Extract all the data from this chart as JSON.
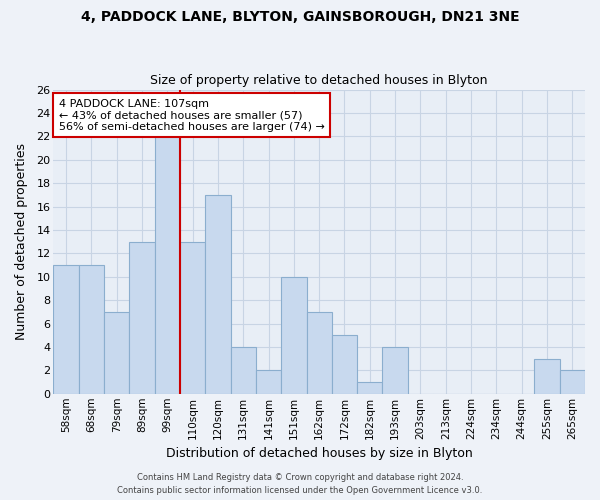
{
  "title1": "4, PADDOCK LANE, BLYTON, GAINSBOROUGH, DN21 3NE",
  "title2": "Size of property relative to detached houses in Blyton",
  "xlabel": "Distribution of detached houses by size in Blyton",
  "ylabel": "Number of detached properties",
  "bar_labels": [
    "58sqm",
    "68sqm",
    "79sqm",
    "89sqm",
    "99sqm",
    "110sqm",
    "120sqm",
    "131sqm",
    "141sqm",
    "151sqm",
    "162sqm",
    "172sqm",
    "182sqm",
    "193sqm",
    "203sqm",
    "213sqm",
    "224sqm",
    "234sqm",
    "244sqm",
    "255sqm",
    "265sqm"
  ],
  "bar_values": [
    11,
    11,
    7,
    13,
    22,
    13,
    17,
    4,
    2,
    10,
    7,
    5,
    1,
    4,
    0,
    0,
    0,
    0,
    0,
    3,
    2
  ],
  "bar_color": "#c8d9ee",
  "bar_edge_color": "#8baece",
  "red_line_x": 4.5,
  "annotation_lines": [
    "4 PADDOCK LANE: 107sqm",
    "← 43% of detached houses are smaller (57)",
    "56% of semi-detached houses are larger (74) →"
  ],
  "ylim": [
    0,
    26
  ],
  "yticks": [
    0,
    2,
    4,
    6,
    8,
    10,
    12,
    14,
    16,
    18,
    20,
    22,
    24,
    26
  ],
  "footer1": "Contains HM Land Registry data © Crown copyright and database right 2024.",
  "footer2": "Contains public sector information licensed under the Open Government Licence v3.0.",
  "bg_color": "#eef2f8",
  "plot_bg_color": "#e8eef6",
  "grid_color": "#c8d4e4",
  "annotation_box_color": "#ffffff",
  "annotation_box_edge": "#cc0000",
  "title1_fontsize": 10,
  "title2_fontsize": 9
}
